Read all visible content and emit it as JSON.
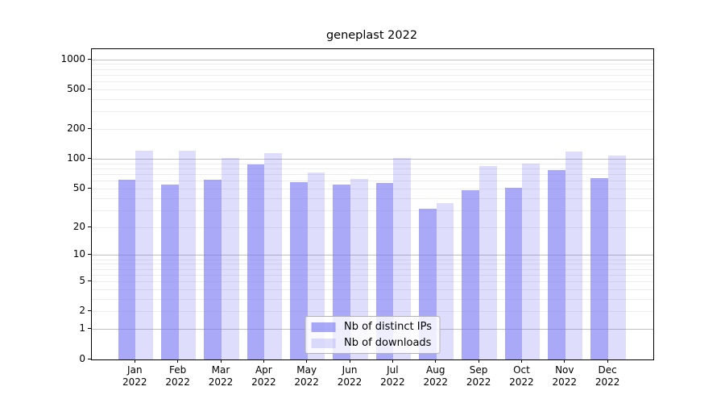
{
  "chart_data": {
    "type": "bar",
    "title": "geneplast 2022",
    "categories": [
      "Jan",
      "Feb",
      "Mar",
      "Apr",
      "May",
      "Jun",
      "Jul",
      "Aug",
      "Sep",
      "Oct",
      "Nov",
      "Dec"
    ],
    "year_label": "2022",
    "series": [
      {
        "name": "Nb of distinct IPs",
        "color": "rgba(116,116,242,0.62)",
        "values": [
          62,
          55,
          62,
          88,
          58,
          55,
          57,
          31,
          48,
          51,
          77,
          64
        ]
      },
      {
        "name": "Nb of downloads",
        "color": "rgba(116,116,242,0.24)",
        "values": [
          122,
          122,
          103,
          115,
          73,
          63,
          103,
          36,
          86,
          90,
          120,
          108
        ]
      }
    ],
    "yscale": "log1p",
    "ylim": [
      0,
      1000
    ],
    "ytick_values": [
      1000,
      500,
      200,
      100,
      50,
      20,
      10,
      5,
      2,
      1,
      0
    ],
    "ytick_labels": [
      "1000",
      "500",
      "200",
      "100",
      "50",
      "20",
      "10",
      "5",
      "2",
      "1",
      "0"
    ],
    "grid": {
      "major_values": [
        1,
        10,
        100,
        1000
      ],
      "minor_values": [
        2,
        3,
        4,
        5,
        6,
        7,
        8,
        9,
        20,
        30,
        40,
        50,
        60,
        70,
        80,
        90,
        200,
        300,
        400,
        500,
        600,
        700,
        800,
        900
      ],
      "major_color": "#bfbfbf",
      "minor_color": "#ececec"
    },
    "legend_position": "lower center"
  },
  "colors": {
    "background": "#ffffff",
    "axis": "#000000",
    "bar_base": "#7474f2"
  }
}
